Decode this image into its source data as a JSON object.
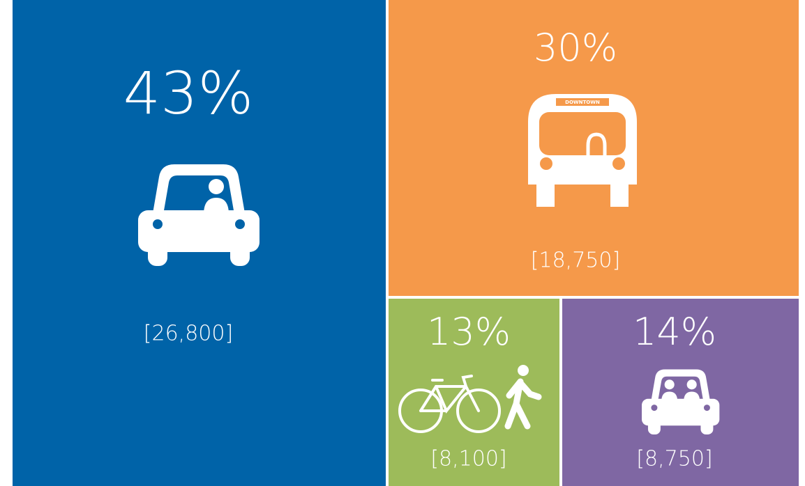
{
  "chart_data": {
    "type": "treemap",
    "values": [
      43,
      30,
      13,
      14
    ],
    "value_labels": [
      "43%",
      "30%",
      "13%",
      "14%"
    ],
    "counts": [
      26800,
      18750,
      8100,
      8750
    ],
    "count_labels": [
      "[26,800]",
      "[18,750]",
      "[8,100]",
      "[8,750]"
    ],
    "colors": [
      "#0063a8",
      "#f5994a",
      "#9dbb5a",
      "#7f67a3"
    ],
    "bus_sign": "DOWNTOWN"
  }
}
